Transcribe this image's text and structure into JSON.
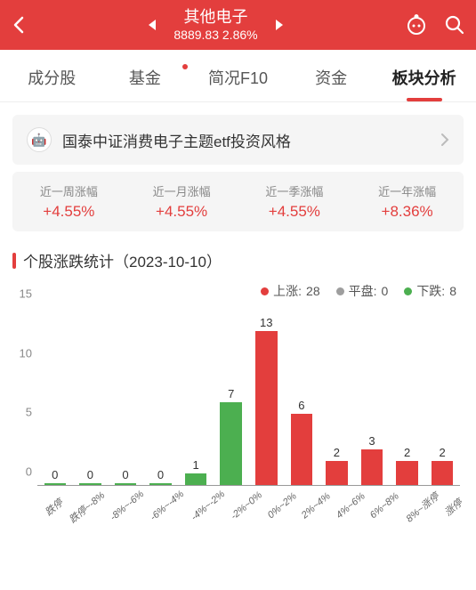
{
  "header": {
    "title": "其他电子",
    "price": "8889.83",
    "change": "2.86%"
  },
  "tabs": [
    {
      "label": "成分股",
      "dot": false
    },
    {
      "label": "基金",
      "dot": true
    },
    {
      "label": "简况F10",
      "dot": false
    },
    {
      "label": "资金",
      "dot": false
    },
    {
      "label": "板块分析",
      "dot": false,
      "active": true
    }
  ],
  "banner": {
    "text": "国泰中证消费电子主题etf投资风格"
  },
  "stats": [
    {
      "label": "近一周涨幅",
      "value": "+4.55%"
    },
    {
      "label": "近一月涨幅",
      "value": "+4.55%"
    },
    {
      "label": "近一季涨幅",
      "value": "+4.55%"
    },
    {
      "label": "近一年涨幅",
      "value": "+8.36%"
    }
  ],
  "section_title": "个股涨跌统计（2023-10-10）",
  "legend": {
    "up": {
      "label": "上涨:",
      "value": "28",
      "color": "#e33e3d"
    },
    "flat": {
      "label": "平盘:",
      "value": "0",
      "color": "#9e9e9e"
    },
    "down": {
      "label": "下跌:",
      "value": "8",
      "color": "#4caf50"
    }
  },
  "chart": {
    "y_max": 15,
    "y_ticks": [
      0,
      5,
      10,
      15
    ],
    "bar_colors": {
      "down": "#4caf50",
      "up": "#e33e3d"
    },
    "bars": [
      {
        "cat": "跌停",
        "val": 0,
        "type": "down"
      },
      {
        "cat": "跌停~-8%",
        "val": 0,
        "type": "down"
      },
      {
        "cat": "-8%~-6%",
        "val": 0,
        "type": "down"
      },
      {
        "cat": "-6%~-4%",
        "val": 0,
        "type": "down"
      },
      {
        "cat": "-4%~-2%",
        "val": 1,
        "type": "down"
      },
      {
        "cat": "-2%~0%",
        "val": 7,
        "type": "down"
      },
      {
        "cat": "0%~2%",
        "val": 13,
        "type": "up"
      },
      {
        "cat": "2%~4%",
        "val": 6,
        "type": "up"
      },
      {
        "cat": "4%~6%",
        "val": 2,
        "type": "up"
      },
      {
        "cat": "6%~8%",
        "val": 3,
        "type": "up"
      },
      {
        "cat": "8%~涨停",
        "val": 2,
        "type": "up"
      },
      {
        "cat": "涨停",
        "val": 2,
        "type": "up"
      }
    ]
  }
}
